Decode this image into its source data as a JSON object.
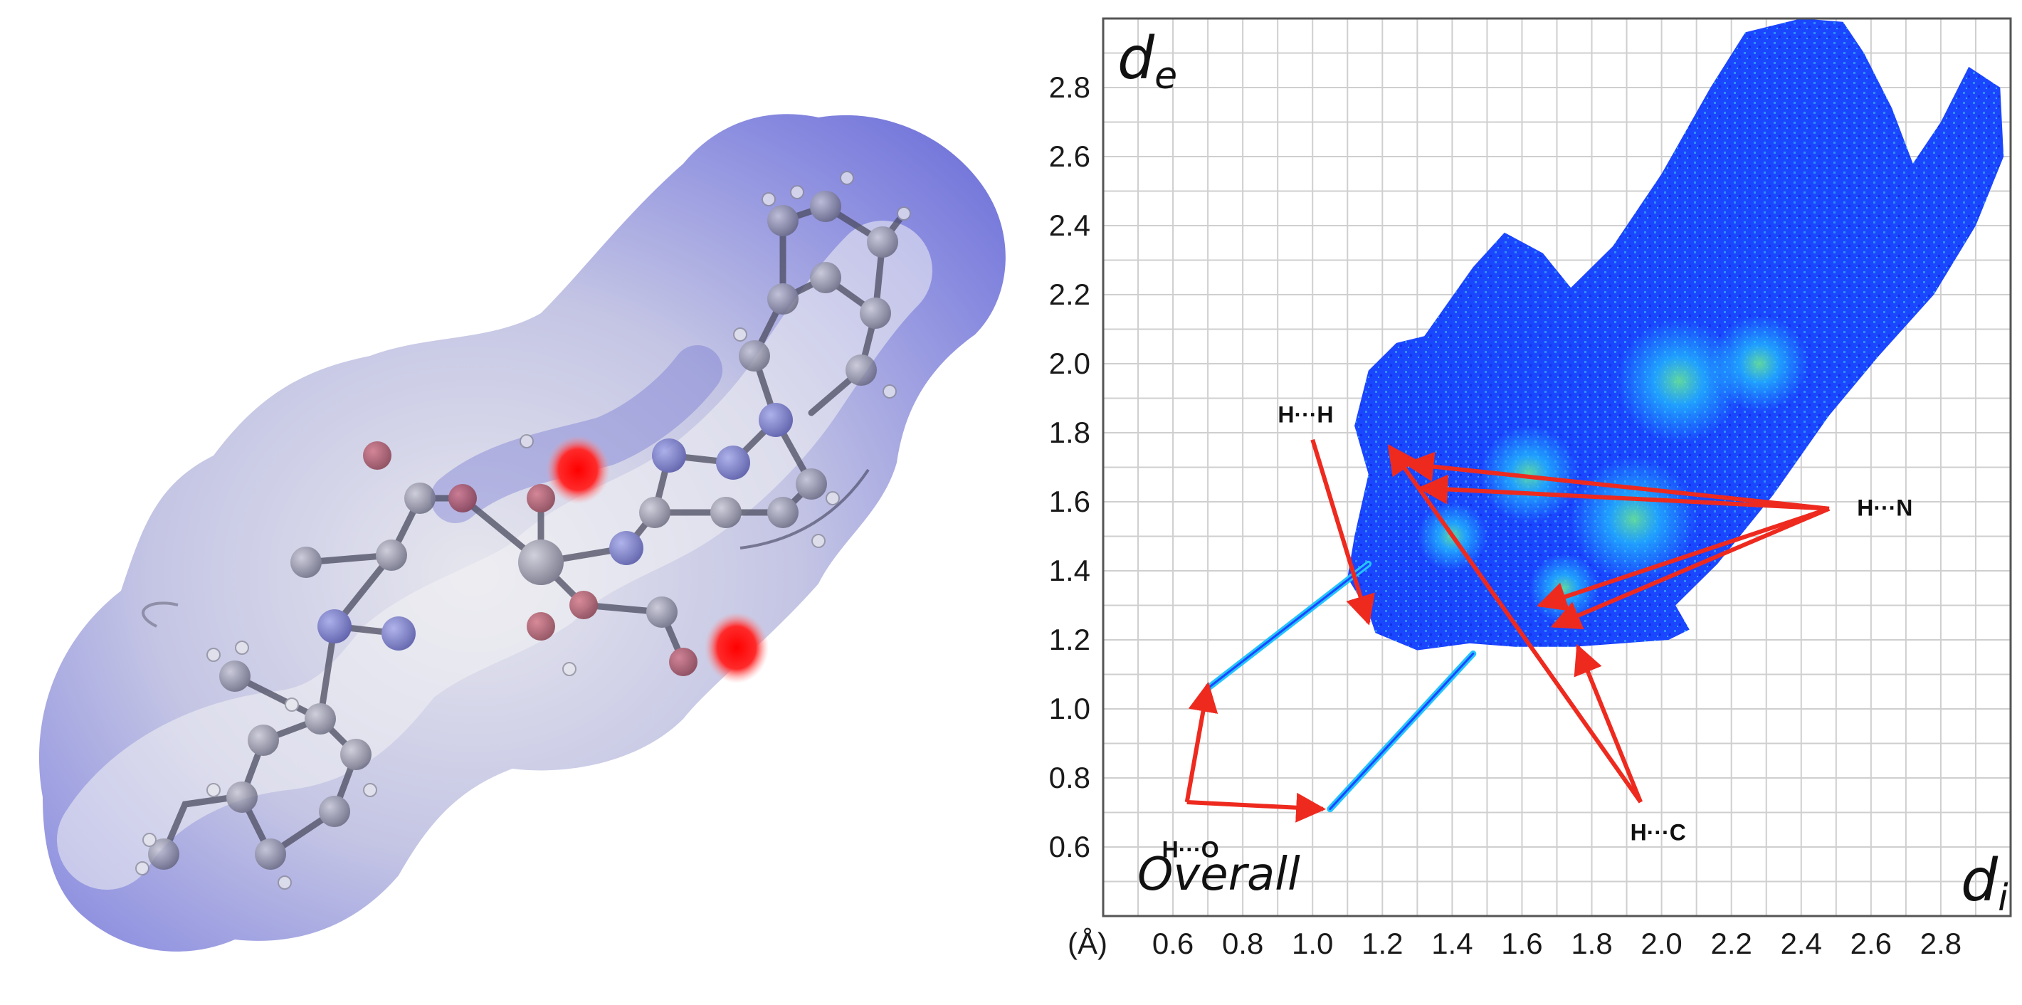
{
  "colors": {
    "surface_main": "#8d8fe0",
    "surface_light": "#d8d9ee",
    "surface_white": "#eeeef2",
    "hotspot": "#ff1a1a",
    "plot_blue": "#1b46ff",
    "plot_cyan": "#23c4ff",
    "plot_green": "#6cf08f",
    "arrow": "#ee2a1f",
    "grid": "#cfcfcf",
    "frame": "#555555"
  },
  "chart_data": {
    "type": "heatmap",
    "title": "",
    "xlabel": "d",
    "xlabel_sub": "i",
    "ylabel": "d",
    "ylabel_sub": "e",
    "unit_label": "(Å)",
    "panel_label": "Overall",
    "xlim": [
      0.4,
      3.0
    ],
    "ylim": [
      0.4,
      3.0
    ],
    "x_ticks": [
      "0.6",
      "0.8",
      "1.0",
      "1.2",
      "1.4",
      "1.6",
      "1.8",
      "2.0",
      "2.2",
      "2.4",
      "2.6",
      "2.8"
    ],
    "y_ticks": [
      "0.6",
      "0.8",
      "1.0",
      "1.2",
      "1.4",
      "1.6",
      "1.8",
      "2.0",
      "2.2",
      "2.4",
      "2.6",
      "2.8"
    ],
    "grid_step": 0.1,
    "grid": true,
    "fingerprint_region": [
      [
        1.18,
        1.22
      ],
      [
        1.3,
        1.17
      ],
      [
        1.45,
        1.19
      ],
      [
        1.58,
        1.18
      ],
      [
        1.75,
        1.18
      ],
      [
        2.02,
        1.2
      ],
      [
        2.08,
        1.23
      ],
      [
        2.04,
        1.3
      ],
      [
        2.16,
        1.42
      ],
      [
        2.32,
        1.62
      ],
      [
        2.48,
        1.85
      ],
      [
        2.62,
        2.02
      ],
      [
        2.78,
        2.2
      ],
      [
        2.9,
        2.4
      ],
      [
        2.98,
        2.6
      ],
      [
        2.97,
        2.8
      ],
      [
        2.88,
        2.86
      ],
      [
        2.8,
        2.7
      ],
      [
        2.72,
        2.58
      ],
      [
        2.66,
        2.74
      ],
      [
        2.58,
        2.9
      ],
      [
        2.52,
        2.99
      ],
      [
        2.4,
        3.0
      ],
      [
        2.24,
        2.96
      ],
      [
        2.14,
        2.8
      ],
      [
        2.0,
        2.55
      ],
      [
        1.86,
        2.34
      ],
      [
        1.74,
        2.22
      ],
      [
        1.66,
        2.32
      ],
      [
        1.55,
        2.38
      ],
      [
        1.46,
        2.28
      ],
      [
        1.32,
        2.08
      ],
      [
        1.24,
        2.06
      ],
      [
        1.16,
        1.98
      ],
      [
        1.12,
        1.82
      ],
      [
        1.16,
        1.68
      ],
      [
        1.12,
        1.5
      ],
      [
        1.1,
        1.38
      ],
      [
        1.16,
        1.28
      ]
    ],
    "spikes": [
      {
        "from": [
          0.7,
          1.06
        ],
        "to": [
          1.16,
          1.42
        ]
      },
      {
        "from": [
          1.05,
          0.71
        ],
        "to": [
          1.46,
          1.16
        ]
      }
    ],
    "hot_spots": [
      {
        "x": 1.62,
        "y": 1.68,
        "r": 0.14
      },
      {
        "x": 1.92,
        "y": 1.55,
        "r": 0.18
      },
      {
        "x": 2.05,
        "y": 1.95,
        "r": 0.18
      },
      {
        "x": 2.28,
        "y": 2.0,
        "r": 0.14
      },
      {
        "x": 1.4,
        "y": 1.5,
        "r": 0.1
      },
      {
        "x": 1.72,
        "y": 1.35,
        "r": 0.1
      }
    ],
    "annotations": [
      {
        "label": "H···H",
        "text_x": 0.98,
        "text_y": 1.83,
        "anchor": "middle",
        "origin": [
          1.0,
          1.78
        ],
        "targets": [
          [
            1.16,
            1.25
          ]
        ]
      },
      {
        "label": "H···N",
        "text_x": 2.56,
        "text_y": 1.56,
        "anchor": "start",
        "origin": [
          2.48,
          1.58
        ],
        "targets": [
          [
            1.27,
            1.71
          ],
          [
            1.31,
            1.64
          ],
          [
            1.65,
            1.3
          ],
          [
            1.69,
            1.24
          ]
        ]
      },
      {
        "label": "H···C",
        "text_x": 1.99,
        "text_y": 0.62,
        "anchor": "middle",
        "origin": [
          1.94,
          0.73
        ],
        "targets": [
          [
            1.22,
            1.76
          ],
          [
            1.76,
            1.18
          ]
        ]
      },
      {
        "label": "H···O",
        "text_x": 0.65,
        "text_y": 0.57,
        "anchor": "middle",
        "origin": [
          0.64,
          0.73
        ],
        "targets": [
          [
            0.7,
            1.07
          ],
          [
            1.03,
            0.71
          ]
        ]
      }
    ]
  }
}
